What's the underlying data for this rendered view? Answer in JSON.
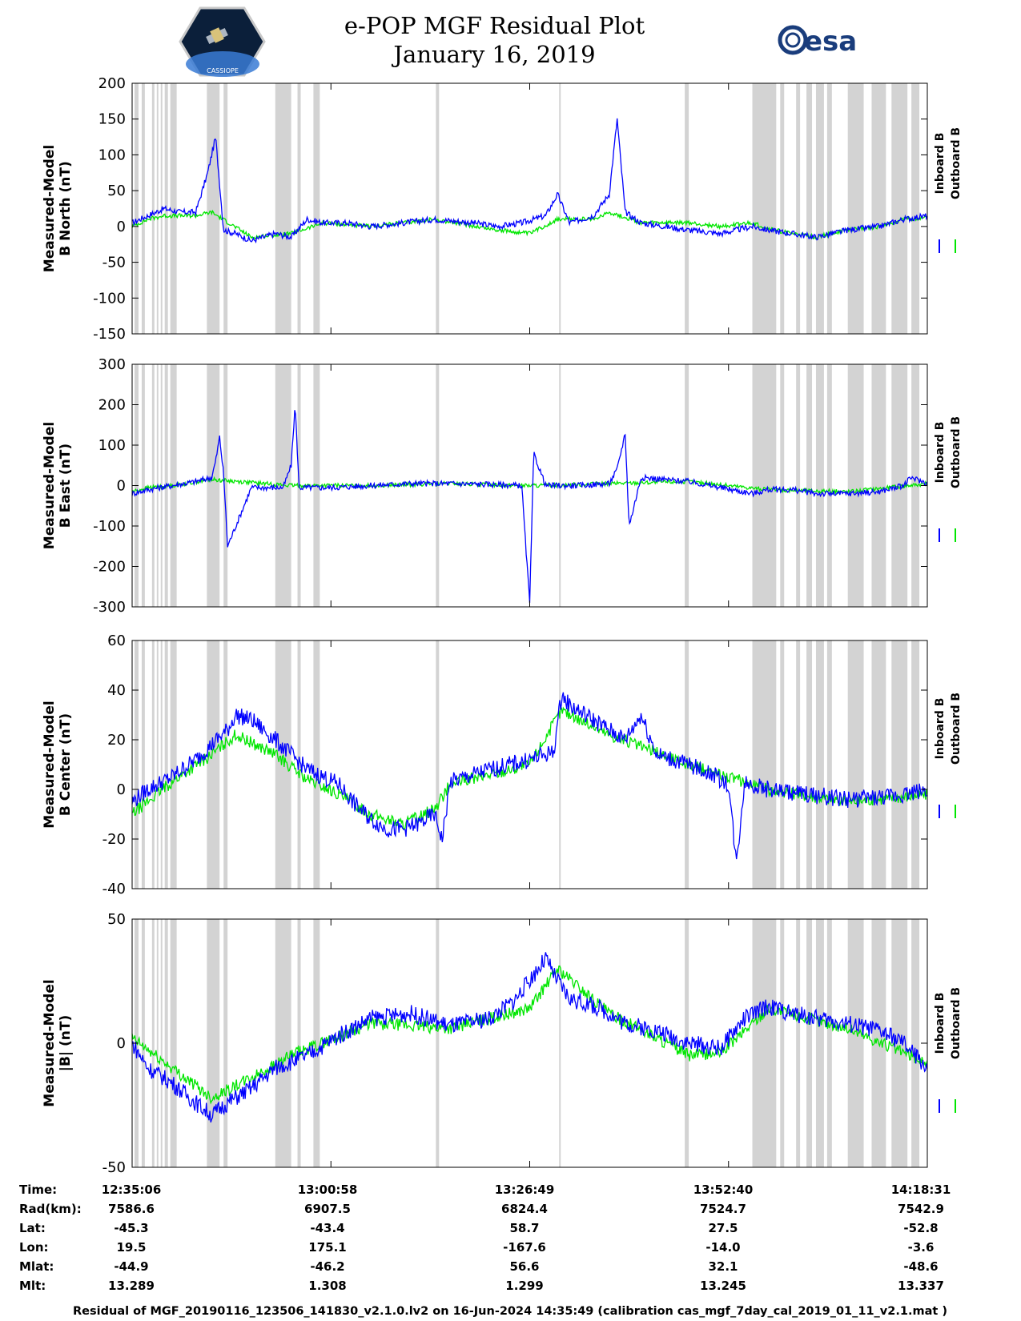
{
  "header": {
    "title": "e-POP MGF Residual Plot",
    "date": "January 16, 2019",
    "left_logo_text": "CASSIOPE",
    "right_logo_text": "esa"
  },
  "colors": {
    "inboard": "#0000ff",
    "outboard": "#00e600",
    "gap": "#d3d3d3"
  },
  "chart_data": [
    {
      "type": "line",
      "ylabel_1": "Measured-Model",
      "ylabel_2": "B North (nT)",
      "ylim": [
        -150,
        200
      ],
      "yticks": [
        -150,
        -100,
        -50,
        0,
        50,
        100,
        150,
        200
      ],
      "series": [
        {
          "name": "Inboard B",
          "x": [
            0,
            0.02,
            0.04,
            0.06,
            0.08,
            0.095,
            0.105,
            0.115,
            0.13,
            0.15,
            0.18,
            0.2,
            0.22,
            0.24,
            0.27,
            0.3,
            0.34,
            0.38,
            0.4,
            0.43,
            0.46,
            0.49,
            0.52,
            0.535,
            0.55,
            0.58,
            0.6,
            0.61,
            0.62,
            0.64,
            0.67,
            0.7,
            0.74,
            0.78,
            0.8,
            0.83,
            0.86,
            0.9,
            0.94,
            0.97,
            1.0
          ],
          "values": [
            5,
            15,
            25,
            20,
            20,
            75,
            125,
            -5,
            -10,
            -20,
            -10,
            -15,
            10,
            5,
            5,
            0,
            5,
            10,
            8,
            5,
            0,
            5,
            15,
            45,
            5,
            15,
            45,
            150,
            20,
            5,
            0,
            -5,
            -10,
            0,
            -5,
            -10,
            -15,
            -5,
            0,
            10,
            15
          ]
        },
        {
          "name": "Outboard B",
          "x": [
            0,
            0.02,
            0.04,
            0.06,
            0.08,
            0.1,
            0.15,
            0.2,
            0.24,
            0.3,
            0.38,
            0.46,
            0.5,
            0.535,
            0.58,
            0.6,
            0.64,
            0.7,
            0.74,
            0.78,
            0.8,
            0.83,
            0.86,
            0.9,
            0.94,
            0.97,
            1.0
          ],
          "values": [
            0,
            10,
            15,
            15,
            15,
            20,
            -15,
            -10,
            5,
            0,
            10,
            -5,
            -10,
            10,
            10,
            20,
            5,
            5,
            0,
            5,
            -3,
            -10,
            -15,
            -5,
            0,
            10,
            12
          ]
        }
      ]
    },
    {
      "type": "line",
      "ylabel_1": "Measured-Model",
      "ylabel_2": "B East (nT)",
      "ylim": [
        -300,
        300
      ],
      "yticks": [
        -300,
        -200,
        -100,
        0,
        100,
        200,
        300
      ],
      "series": [
        {
          "name": "Inboard B",
          "x": [
            0,
            0.02,
            0.05,
            0.08,
            0.1,
            0.105,
            0.11,
            0.115,
            0.12,
            0.15,
            0.19,
            0.2,
            0.205,
            0.21,
            0.25,
            0.3,
            0.35,
            0.4,
            0.45,
            0.49,
            0.495,
            0.5,
            0.505,
            0.52,
            0.56,
            0.6,
            0.61,
            0.62,
            0.625,
            0.64,
            0.7,
            0.74,
            0.78,
            0.8,
            0.83,
            0.86,
            0.9,
            0.94,
            0.97,
            0.98,
            1.0
          ],
          "values": [
            -20,
            -10,
            0,
            10,
            20,
            60,
            120,
            30,
            -150,
            -5,
            -5,
            50,
            200,
            -5,
            -5,
            0,
            5,
            5,
            3,
            0,
            -150,
            -290,
            80,
            0,
            0,
            5,
            40,
            130,
            -100,
            20,
            10,
            -5,
            -20,
            -10,
            -10,
            -20,
            -20,
            -15,
            0,
            20,
            5
          ]
        },
        {
          "name": "Outboard B",
          "x": [
            0,
            0.02,
            0.05,
            0.1,
            0.2,
            0.3,
            0.4,
            0.49,
            0.52,
            0.6,
            0.7,
            0.8,
            0.9,
            1.0
          ],
          "values": [
            -15,
            -5,
            0,
            15,
            0,
            0,
            5,
            0,
            0,
            5,
            10,
            -10,
            -15,
            5
          ]
        }
      ]
    },
    {
      "type": "line",
      "ylabel_1": "Measured-Model",
      "ylabel_2": "B Center (nT)",
      "ylim": [
        -40,
        60
      ],
      "yticks": [
        -40,
        -20,
        0,
        20,
        40,
        60
      ],
      "series": [
        {
          "name": "Inboard B",
          "x": [
            0,
            0.02,
            0.05,
            0.08,
            0.1,
            0.12,
            0.13,
            0.15,
            0.18,
            0.2,
            0.22,
            0.24,
            0.26,
            0.28,
            0.3,
            0.32,
            0.34,
            0.36,
            0.38,
            0.39,
            0.4,
            0.45,
            0.5,
            0.53,
            0.54,
            0.55,
            0.58,
            0.6,
            0.62,
            0.64,
            0.66,
            0.68,
            0.7,
            0.73,
            0.75,
            0.76,
            0.77,
            0.8,
            0.85,
            0.9,
            0.95,
            1.0
          ],
          "values": [
            -5,
            0,
            5,
            12,
            18,
            24,
            30,
            28,
            20,
            14,
            8,
            5,
            2,
            -6,
            -12,
            -16,
            -16,
            -14,
            -10,
            -20,
            3,
            8,
            12,
            15,
            38,
            34,
            28,
            24,
            20,
            30,
            14,
            12,
            10,
            6,
            2,
            -30,
            3,
            0,
            -2,
            -4,
            -3,
            0
          ]
        },
        {
          "name": "Outboard B",
          "x": [
            0,
            0.05,
            0.1,
            0.13,
            0.18,
            0.22,
            0.26,
            0.3,
            0.34,
            0.38,
            0.4,
            0.5,
            0.54,
            0.6,
            0.7,
            0.8,
            0.9,
            1.0
          ],
          "values": [
            -10,
            3,
            14,
            22,
            14,
            4,
            -2,
            -10,
            -14,
            -8,
            2,
            10,
            32,
            22,
            10,
            0,
            -5,
            -2
          ]
        }
      ]
    },
    {
      "type": "line",
      "ylabel_1": "Measured-Model",
      "ylabel_2": "|B| (nT)",
      "ylim": [
        -50,
        50
      ],
      "yticks": [
        -50,
        0,
        50
      ],
      "series": [
        {
          "name": "Inboard B",
          "x": [
            0,
            0.02,
            0.05,
            0.08,
            0.1,
            0.12,
            0.15,
            0.18,
            0.22,
            0.26,
            0.3,
            0.35,
            0.4,
            0.45,
            0.48,
            0.52,
            0.535,
            0.55,
            0.58,
            0.6,
            0.62,
            0.66,
            0.7,
            0.74,
            0.77,
            0.8,
            0.83,
            0.86,
            0.9,
            0.94,
            0.97,
            1.0
          ],
          "values": [
            0,
            -10,
            -16,
            -24,
            -29,
            -24,
            -18,
            -10,
            -5,
            3,
            10,
            12,
            7,
            10,
            17,
            34,
            25,
            18,
            15,
            12,
            8,
            5,
            0,
            -2,
            10,
            15,
            12,
            10,
            8,
            5,
            0,
            -10
          ]
        },
        {
          "name": "Outboard B",
          "x": [
            0,
            0.05,
            0.1,
            0.15,
            0.2,
            0.3,
            0.4,
            0.5,
            0.535,
            0.6,
            0.66,
            0.7,
            0.74,
            0.8,
            0.9,
            1.0
          ],
          "values": [
            2,
            -10,
            -22,
            -14,
            -5,
            8,
            6,
            14,
            30,
            12,
            2,
            -5,
            -4,
            14,
            6,
            -8
          ]
        }
      ]
    }
  ],
  "legend": [
    "Inboard B",
    "Outboard B"
  ],
  "info_table": {
    "row_labels": [
      "Time:",
      "Rad(km):",
      "Lat:",
      "Lon:",
      "Mlat:",
      "Mlt:"
    ],
    "columns": [
      {
        "time": "12:35:06",
        "rad": "7586.6",
        "lat": "-45.3",
        "lon": "19.5",
        "mlat": "-44.9",
        "mlt": "13.289"
      },
      {
        "time": "13:00:58",
        "rad": "6907.5",
        "lat": "-43.4",
        "lon": "175.1",
        "mlat": "-46.2",
        "mlt": "1.308"
      },
      {
        "time": "13:26:49",
        "rad": "6824.4",
        "lat": "58.7",
        "lon": "-167.6",
        "mlat": "56.6",
        "mlt": "1.299"
      },
      {
        "time": "13:52:40",
        "rad": "7524.7",
        "lat": "27.5",
        "lon": "-14.0",
        "mlat": "32.1",
        "mlt": "13.245"
      },
      {
        "time": "14:18:31",
        "rad": "7542.9",
        "lat": "-52.8",
        "lon": "-3.6",
        "mlat": "-48.6",
        "mlt": "13.337"
      }
    ]
  },
  "footer": "Residual of MGF_20190116_123506_141830_v2.1.0.lv2 on 16-Jun-2024 14:35:49 (calibration cas_mgf_7day_cal_2019_01_11_v2.1.mat )"
}
